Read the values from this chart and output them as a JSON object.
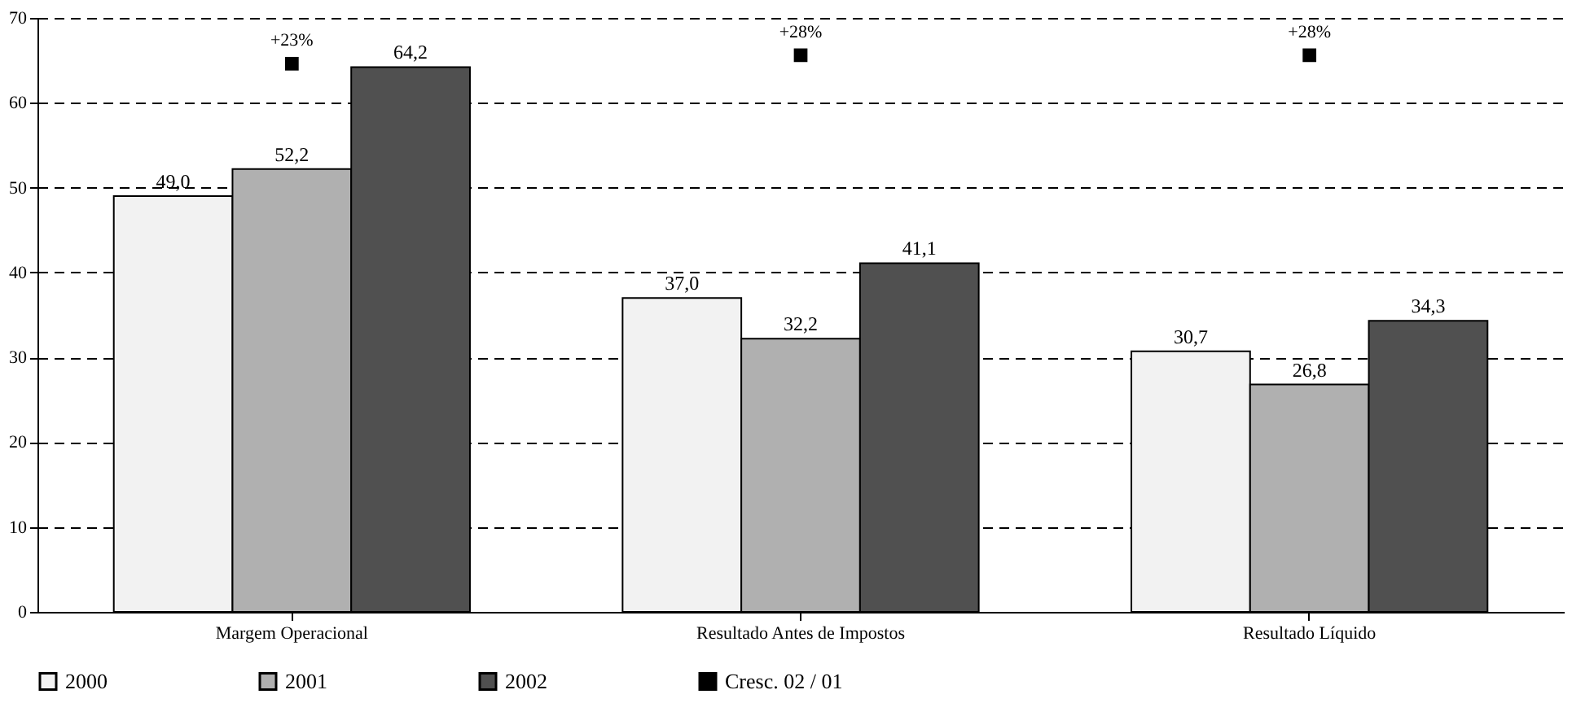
{
  "chart_data": {
    "type": "bar",
    "categories": [
      "Margem Operacional",
      "Resultado Antes de Impostos",
      "Resultado Líquido"
    ],
    "series": [
      {
        "name": "2000",
        "color": "#f2f2f2",
        "values": [
          49.0,
          37.0,
          30.7
        ],
        "value_labels": [
          "49,0",
          "37,0",
          "30,7"
        ]
      },
      {
        "name": "2001",
        "color": "#b0b0b0",
        "values": [
          52.2,
          32.2,
          26.8
        ],
        "value_labels": [
          "52,2",
          "32,2",
          "26,8"
        ]
      },
      {
        "name": "2002",
        "color": "#505050",
        "values": [
          64.2,
          41.1,
          34.3
        ],
        "value_labels": [
          "64,2",
          "41,1",
          "34,3"
        ]
      },
      {
        "name": "Cresc. 02 / 01",
        "type": "scatter",
        "color": "#000000",
        "marker": "square",
        "values": [
          64.6,
          65.6,
          65.6
        ]
      }
    ],
    "annotations": [
      {
        "text": "+23%",
        "x": "Margem Operacional",
        "y": 64.6
      },
      {
        "text": "+28%",
        "x": "Resultado Antes de Impostos",
        "y": 65.6
      },
      {
        "text": "+28%",
        "x": "Resultado Líquido",
        "y": 65.6
      }
    ],
    "ylim": [
      0,
      70
    ],
    "yticks": [
      0,
      10,
      20,
      30,
      40,
      50,
      60,
      70
    ],
    "grid": "y",
    "legend": "bottom"
  }
}
